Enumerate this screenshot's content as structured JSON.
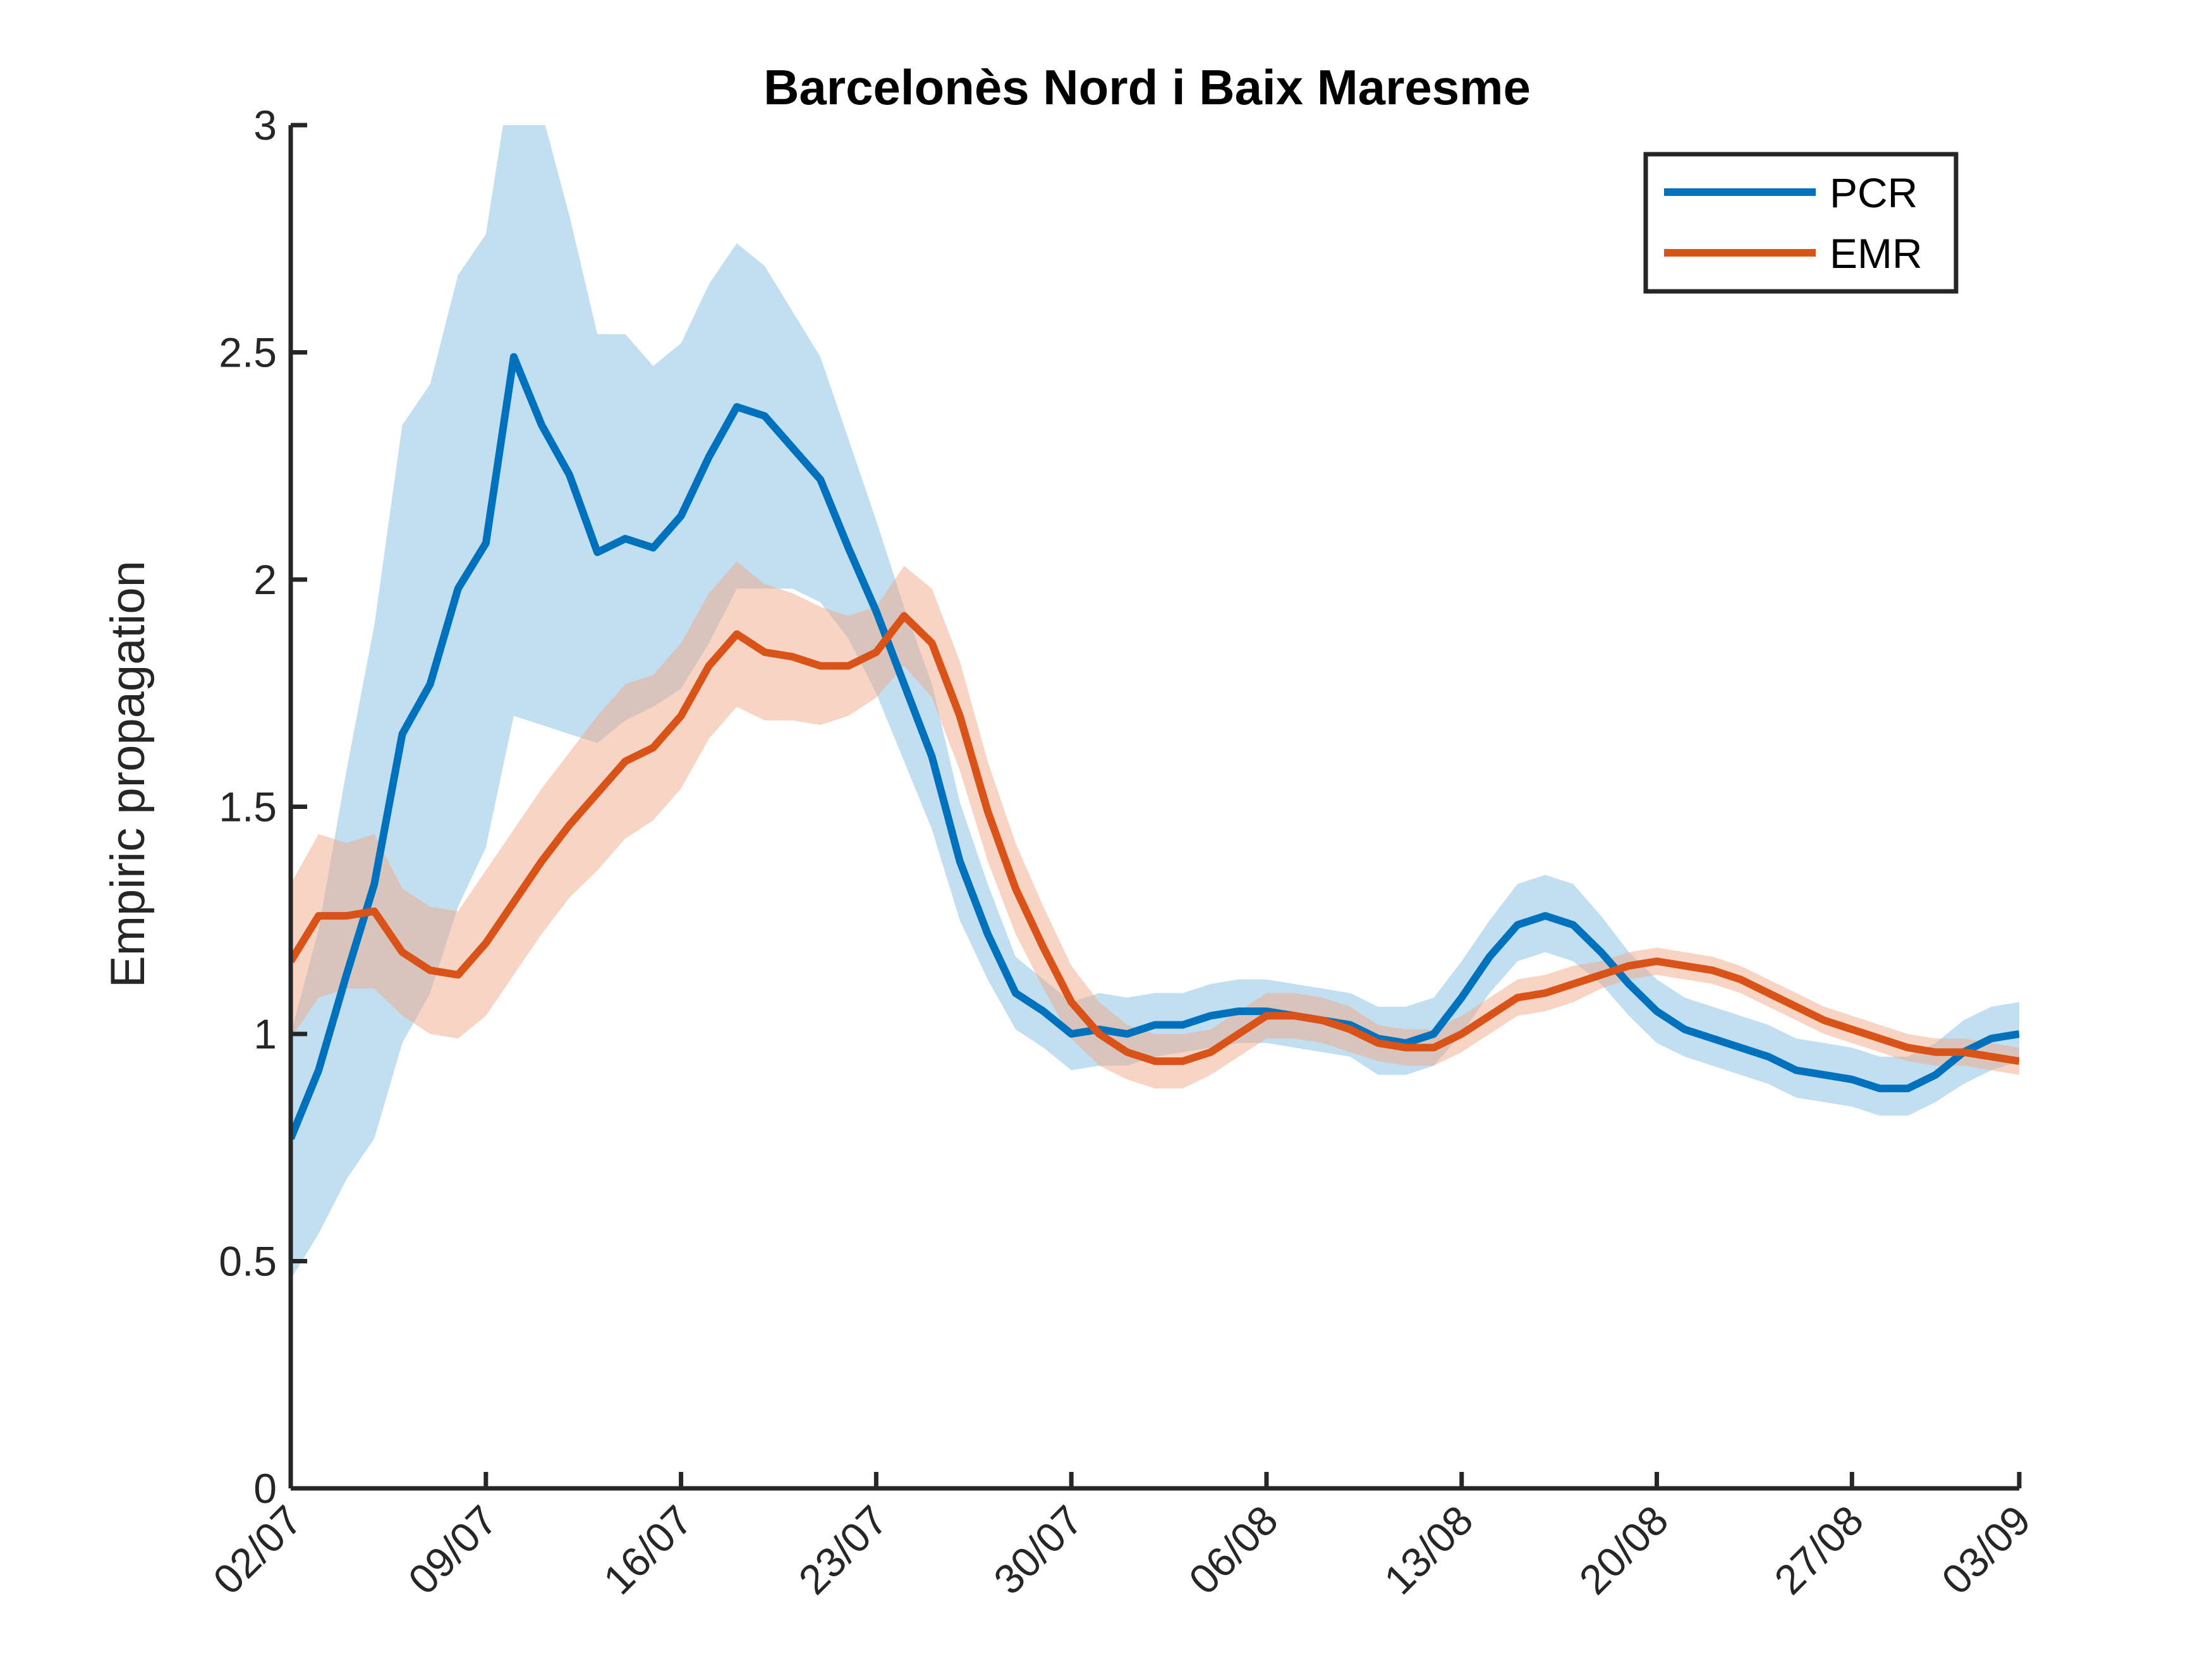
{
  "chart_data": {
    "type": "line",
    "title": "Barcelonès Nord i Baix Maresme",
    "xlabel": "",
    "ylabel": "Empiric propagation",
    "ylim": [
      0,
      3
    ],
    "yticks": [
      "0",
      "0.5",
      "1",
      "1.5",
      "2",
      "2.5",
      "3"
    ],
    "xtick_labels": [
      "02/07",
      "09/07",
      "16/07",
      "23/07",
      "30/07",
      "06/08",
      "13/08",
      "20/08",
      "27/08",
      "03/09"
    ],
    "x_start": "02/07",
    "x_end": "03/09",
    "legend_position": "top-right",
    "grid": false,
    "series": [
      {
        "name": "PCR",
        "color": "#0072BD",
        "band_color": "#4DA3D6",
        "values": [
          0.77,
          0.92,
          1.13,
          1.33,
          1.66,
          1.77,
          1.98,
          2.08,
          2.49,
          2.34,
          2.23,
          2.06,
          2.09,
          2.07,
          2.14,
          2.27,
          2.38,
          2.36,
          2.29,
          2.22,
          2.07,
          1.93,
          1.77,
          1.61,
          1.38,
          1.22,
          1.09,
          1.05,
          1.0,
          1.01,
          1.0,
          1.02,
          1.02,
          1.04,
          1.05,
          1.05,
          1.04,
          1.03,
          1.02,
          0.99,
          0.98,
          1.0,
          1.08,
          1.17,
          1.24,
          1.26,
          1.24,
          1.18,
          1.11,
          1.05,
          1.01,
          0.99,
          0.97,
          0.95,
          0.92,
          0.91,
          0.9,
          0.88,
          0.88,
          0.91,
          0.96,
          0.99,
          1.0
        ],
        "lower": [
          0.46,
          0.56,
          0.68,
          0.77,
          0.98,
          1.09,
          1.28,
          1.41,
          1.7,
          1.68,
          1.66,
          1.64,
          1.69,
          1.72,
          1.76,
          1.86,
          1.98,
          1.98,
          1.98,
          1.95,
          1.87,
          1.75,
          1.6,
          1.45,
          1.25,
          1.12,
          1.01,
          0.97,
          0.92,
          0.93,
          0.93,
          0.95,
          0.96,
          0.97,
          0.98,
          0.98,
          0.97,
          0.96,
          0.95,
          0.91,
          0.91,
          0.93,
          1.0,
          1.09,
          1.16,
          1.18,
          1.16,
          1.11,
          1.04,
          0.98,
          0.95,
          0.93,
          0.91,
          0.89,
          0.86,
          0.85,
          0.84,
          0.82,
          0.82,
          0.85,
          0.89,
          0.92,
          0.94
        ],
        "upper": [
          1.0,
          1.23,
          1.58,
          1.9,
          2.34,
          2.43,
          2.67,
          2.76,
          3.15,
          3.03,
          2.8,
          2.54,
          2.54,
          2.47,
          2.52,
          2.65,
          2.74,
          2.69,
          2.59,
          2.49,
          2.31,
          2.13,
          1.94,
          1.77,
          1.51,
          1.33,
          1.17,
          1.12,
          1.07,
          1.09,
          1.08,
          1.09,
          1.09,
          1.11,
          1.12,
          1.12,
          1.11,
          1.1,
          1.09,
          1.06,
          1.06,
          1.08,
          1.16,
          1.25,
          1.33,
          1.35,
          1.33,
          1.26,
          1.18,
          1.12,
          1.08,
          1.06,
          1.04,
          1.02,
          0.99,
          0.98,
          0.97,
          0.95,
          0.95,
          0.98,
          1.03,
          1.06,
          1.07
        ]
      },
      {
        "name": "EMR",
        "color": "#D95319",
        "band_color": "#EFA98A",
        "values": [
          1.16,
          1.26,
          1.26,
          1.27,
          1.18,
          1.14,
          1.13,
          1.2,
          1.29,
          1.38,
          1.46,
          1.53,
          1.6,
          1.63,
          1.7,
          1.81,
          1.88,
          1.84,
          1.83,
          1.81,
          1.81,
          1.84,
          1.92,
          1.86,
          1.7,
          1.49,
          1.32,
          1.19,
          1.07,
          1.0,
          0.96,
          0.94,
          0.94,
          0.96,
          1.0,
          1.04,
          1.04,
          1.03,
          1.01,
          0.98,
          0.97,
          0.97,
          1.0,
          1.04,
          1.08,
          1.09,
          1.11,
          1.13,
          1.15,
          1.16,
          1.15,
          1.14,
          1.12,
          1.09,
          1.06,
          1.03,
          1.01,
          0.99,
          0.97,
          0.96,
          0.96,
          0.95,
          0.94
        ]
      }
    ],
    "emr_lower": [
      0.99,
      1.08,
      1.1,
      1.1,
      1.04,
      1.0,
      0.99,
      1.04,
      1.13,
      1.22,
      1.3,
      1.36,
      1.43,
      1.47,
      1.54,
      1.65,
      1.72,
      1.69,
      1.69,
      1.68,
      1.7,
      1.74,
      1.81,
      1.74,
      1.58,
      1.38,
      1.22,
      1.1,
      0.99,
      0.93,
      0.9,
      0.88,
      0.88,
      0.91,
      0.95,
      0.99,
      0.99,
      0.98,
      0.96,
      0.94,
      0.93,
      0.93,
      0.96,
      1.0,
      1.04,
      1.05,
      1.07,
      1.1,
      1.12,
      1.13,
      1.12,
      1.11,
      1.09,
      1.06,
      1.03,
      1.0,
      0.98,
      0.96,
      0.94,
      0.93,
      0.93,
      0.92,
      0.91
    ],
    "emr_upper": [
      1.33,
      1.44,
      1.42,
      1.44,
      1.32,
      1.28,
      1.27,
      1.36,
      1.45,
      1.54,
      1.62,
      1.7,
      1.77,
      1.79,
      1.86,
      1.97,
      2.04,
      1.99,
      1.97,
      1.94,
      1.92,
      1.94,
      2.03,
      1.98,
      1.82,
      1.6,
      1.42,
      1.28,
      1.15,
      1.07,
      1.02,
      1.0,
      1.0,
      1.01,
      1.05,
      1.09,
      1.09,
      1.08,
      1.06,
      1.02,
      1.01,
      1.01,
      1.04,
      1.08,
      1.12,
      1.13,
      1.15,
      1.16,
      1.18,
      1.19,
      1.18,
      1.17,
      1.15,
      1.12,
      1.09,
      1.06,
      1.04,
      1.02,
      1.0,
      0.99,
      0.99,
      0.98,
      0.97
    ]
  }
}
